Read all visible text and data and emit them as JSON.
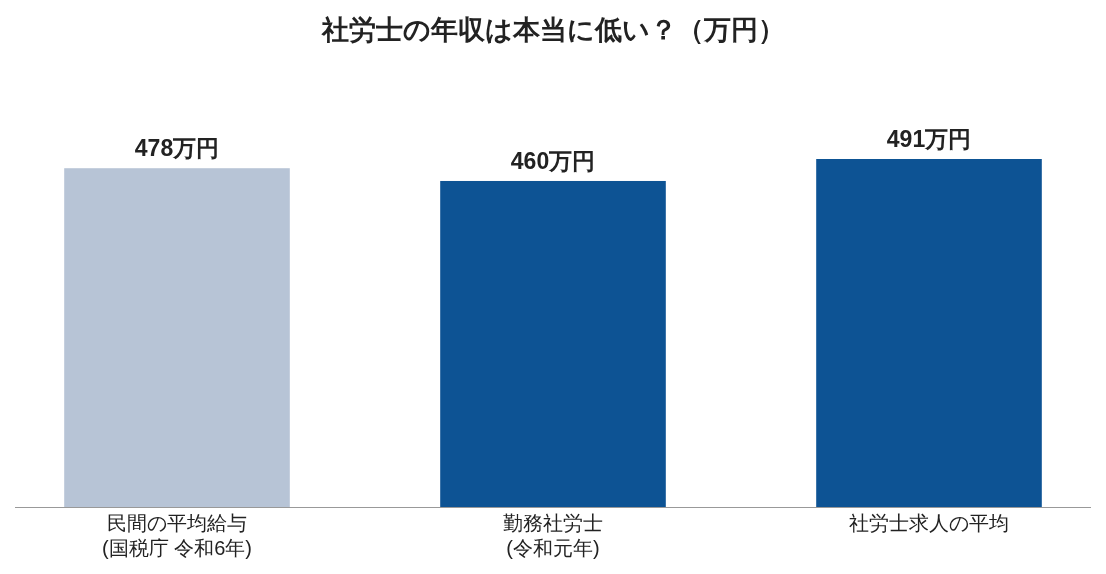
{
  "chart_data": {
    "type": "bar",
    "title": "社労士の年収は本当に低い？（万円）",
    "categories": [
      "民間の平均給与\n(国税庁 令和6年)",
      "勤務社労士\n(令和元年)",
      "社労士求人の平均"
    ],
    "values": [
      478,
      460,
      491
    ],
    "value_labels": [
      "478万円",
      "460万円",
      "491万円"
    ],
    "colors": [
      "#b7c4d6",
      "#0d5394",
      "#0d5394"
    ]
  }
}
